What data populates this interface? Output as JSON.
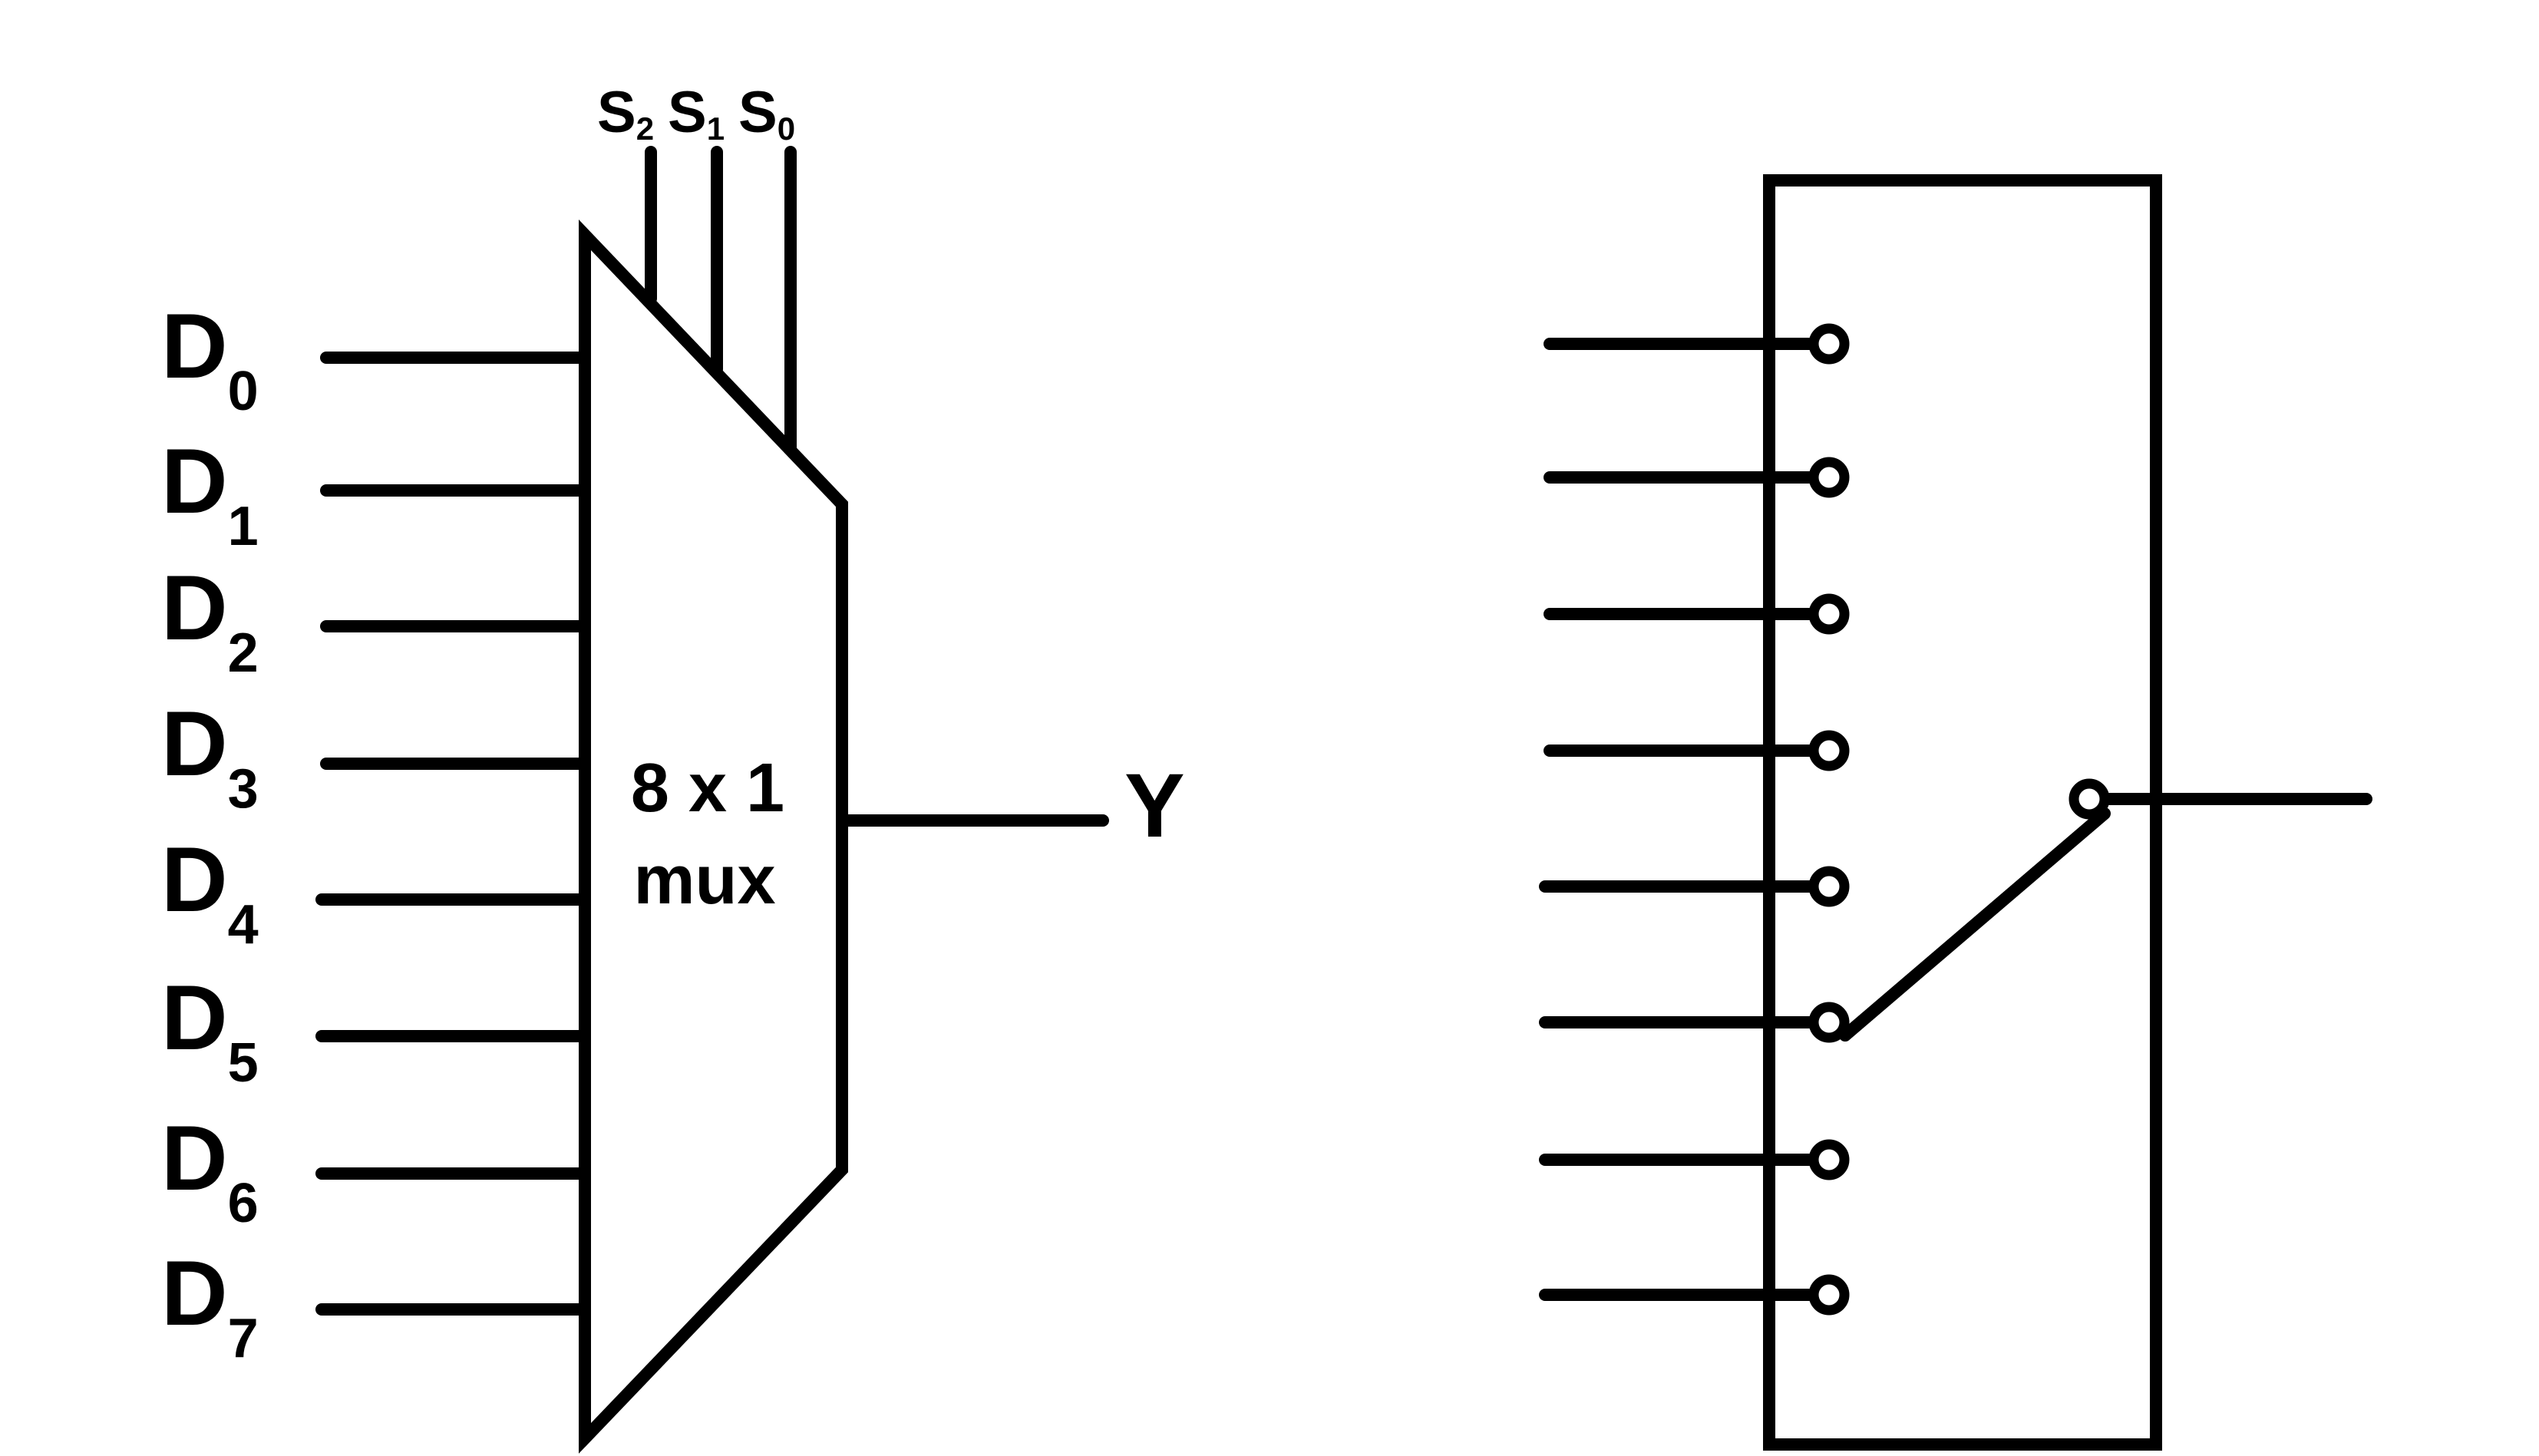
{
  "mux": {
    "size_label": "8 x 1",
    "type_label": "mux",
    "output_label": "Y",
    "select_lines": [
      {
        "letter": "S",
        "index": "2"
      },
      {
        "letter": "S",
        "index": "1"
      },
      {
        "letter": "S",
        "index": "0"
      }
    ],
    "inputs": [
      {
        "letter": "D",
        "index": "0"
      },
      {
        "letter": "D",
        "index": "1"
      },
      {
        "letter": "D",
        "index": "2"
      },
      {
        "letter": "D",
        "index": "3"
      },
      {
        "letter": "D",
        "index": "4"
      },
      {
        "letter": "D",
        "index": "5"
      },
      {
        "letter": "D",
        "index": "6"
      },
      {
        "letter": "D",
        "index": "7"
      }
    ]
  },
  "switch_model": {
    "contact_count": 8,
    "selected_contact": 6
  },
  "colors": {
    "stroke": "#000000",
    "background": "#ffffff"
  }
}
